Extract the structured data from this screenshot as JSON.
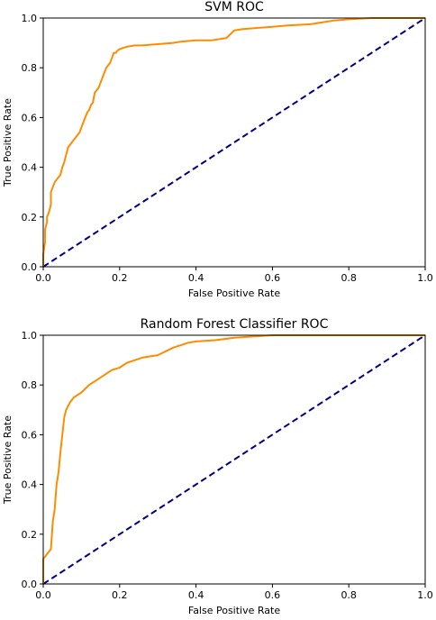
{
  "chart_data": [
    {
      "type": "line",
      "title": "SVM ROC",
      "xlabel": "False Positive Rate",
      "ylabel": "True Positive Rate",
      "xlim": [
        0.0,
        1.0
      ],
      "ylim": [
        0.0,
        1.0
      ],
      "xticks": [
        "0.0",
        "0.2",
        "0.4",
        "0.6",
        "0.8",
        "1.0"
      ],
      "yticks": [
        "0.0",
        "0.2",
        "0.4",
        "0.6",
        "0.8",
        "1.0"
      ],
      "grid": false,
      "colors": {
        "roc": "#ff8c00",
        "chance": "#000080"
      },
      "series": [
        {
          "style": "solid",
          "x": [
            0.0,
            0.0,
            0.005,
            0.005,
            0.01,
            0.01,
            0.015,
            0.02,
            0.02,
            0.025,
            0.03,
            0.035,
            0.04,
            0.045,
            0.05,
            0.055,
            0.06,
            0.065,
            0.07,
            0.075,
            0.08,
            0.085,
            0.09,
            0.095,
            0.1,
            0.11,
            0.115,
            0.12,
            0.125,
            0.13,
            0.135,
            0.14,
            0.145,
            0.15,
            0.155,
            0.16,
            0.165,
            0.17,
            0.175,
            0.18,
            0.185,
            0.19,
            0.195,
            0.2,
            0.21,
            0.22,
            0.24,
            0.26,
            0.3,
            0.34,
            0.36,
            0.4,
            0.44,
            0.48,
            0.5,
            0.52,
            0.56,
            0.6,
            0.64,
            0.7,
            0.72,
            0.76,
            0.8,
            0.86,
            0.9,
            1.0
          ],
          "y": [
            0.0,
            0.05,
            0.1,
            0.15,
            0.18,
            0.2,
            0.22,
            0.25,
            0.3,
            0.32,
            0.34,
            0.35,
            0.36,
            0.37,
            0.4,
            0.42,
            0.45,
            0.48,
            0.49,
            0.5,
            0.51,
            0.52,
            0.53,
            0.54,
            0.56,
            0.6,
            0.62,
            0.63,
            0.65,
            0.66,
            0.7,
            0.71,
            0.72,
            0.74,
            0.76,
            0.78,
            0.8,
            0.81,
            0.82,
            0.84,
            0.86,
            0.86,
            0.87,
            0.875,
            0.88,
            0.885,
            0.89,
            0.89,
            0.895,
            0.9,
            0.905,
            0.91,
            0.91,
            0.92,
            0.95,
            0.955,
            0.96,
            0.965,
            0.97,
            0.975,
            0.98,
            0.99,
            0.995,
            1.0,
            1.0,
            1.0
          ]
        },
        {
          "style": "dashed",
          "x": [
            0.0,
            1.0
          ],
          "y": [
            0.0,
            1.0
          ]
        }
      ]
    },
    {
      "type": "line",
      "title": "Random Forest Classifier ROC",
      "xlabel": "False Positive Rate",
      "ylabel": "True Positive Rate",
      "xlim": [
        0.0,
        1.0
      ],
      "ylim": [
        0.0,
        1.0
      ],
      "xticks": [
        "0.0",
        "0.2",
        "0.4",
        "0.6",
        "0.8",
        "1.0"
      ],
      "yticks": [
        "0.0",
        "0.2",
        "0.4",
        "0.6",
        "0.8",
        "1.0"
      ],
      "grid": false,
      "colors": {
        "roc": "#ff8c00",
        "chance": "#000080"
      },
      "series": [
        {
          "style": "solid",
          "x": [
            0.0,
            0.0,
            0.01,
            0.02,
            0.025,
            0.03,
            0.035,
            0.04,
            0.045,
            0.05,
            0.055,
            0.06,
            0.07,
            0.08,
            0.09,
            0.1,
            0.12,
            0.14,
            0.16,
            0.18,
            0.2,
            0.22,
            0.26,
            0.3,
            0.34,
            0.38,
            0.4,
            0.45,
            0.5,
            0.55,
            0.6,
            0.63,
            0.8,
            1.0
          ],
          "y": [
            0.0,
            0.1,
            0.12,
            0.14,
            0.25,
            0.3,
            0.4,
            0.45,
            0.53,
            0.6,
            0.67,
            0.7,
            0.73,
            0.75,
            0.76,
            0.77,
            0.8,
            0.82,
            0.84,
            0.86,
            0.87,
            0.89,
            0.91,
            0.92,
            0.95,
            0.97,
            0.975,
            0.98,
            0.99,
            0.995,
            1.0,
            1.0,
            1.0,
            1.0
          ]
        },
        {
          "style": "dashed",
          "x": [
            0.0,
            1.0
          ],
          "y": [
            0.0,
            1.0
          ]
        }
      ]
    }
  ]
}
